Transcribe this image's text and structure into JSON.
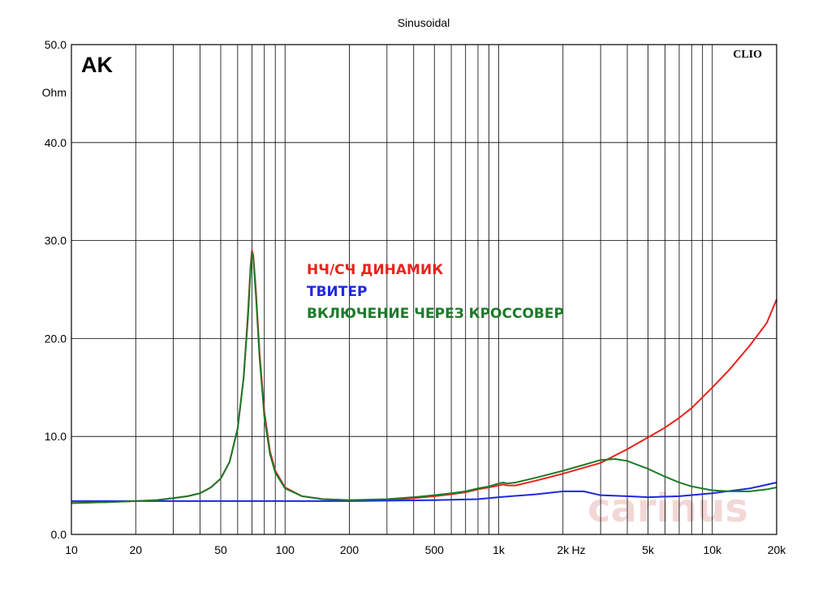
{
  "chart_data": {
    "type": "line",
    "title": "Sinusoidal",
    "corner_label": "AK",
    "brand": "CLIO",
    "watermark": "carinus",
    "ylabel": "Ohm",
    "xlabel": "Hz",
    "xscale": "log",
    "xlim": [
      10,
      20000
    ],
    "ylim": [
      0,
      50
    ],
    "grid": true,
    "x_ticks": [
      10,
      20,
      50,
      100,
      200,
      500,
      1000,
      2000,
      5000,
      10000,
      20000
    ],
    "x_tick_labels": [
      "10",
      "20",
      "50",
      "100",
      "200",
      "500",
      "1k",
      "2k",
      "5k",
      "10k",
      "20k"
    ],
    "y_ticks": [
      0,
      10,
      20,
      30,
      40,
      50
    ],
    "y_tick_labels": [
      "0.0",
      "10.0",
      "20.0",
      "30.0",
      "40.0",
      "50.0"
    ],
    "legend_position": "center",
    "series": [
      {
        "name": "НЧ/СЧ ДИНАМИК",
        "color": "#e8231d",
        "points": [
          [
            10,
            3.2
          ],
          [
            15,
            3.3
          ],
          [
            20,
            3.4
          ],
          [
            25,
            3.5
          ],
          [
            30,
            3.7
          ],
          [
            35,
            3.9
          ],
          [
            40,
            4.2
          ],
          [
            45,
            4.8
          ],
          [
            50,
            5.7
          ],
          [
            55,
            7.4
          ],
          [
            60,
            10.8
          ],
          [
            64,
            16.0
          ],
          [
            67,
            22.5
          ],
          [
            69,
            27.5
          ],
          [
            70,
            29.0
          ],
          [
            71,
            28.5
          ],
          [
            73,
            25.0
          ],
          [
            76,
            18.5
          ],
          [
            80,
            12.5
          ],
          [
            85,
            8.5
          ],
          [
            90,
            6.5
          ],
          [
            100,
            4.8
          ],
          [
            120,
            3.9
          ],
          [
            150,
            3.6
          ],
          [
            200,
            3.5
          ],
          [
            300,
            3.5
          ],
          [
            400,
            3.7
          ],
          [
            500,
            3.9
          ],
          [
            600,
            4.1
          ],
          [
            700,
            4.3
          ],
          [
            800,
            4.6
          ],
          [
            900,
            4.8
          ],
          [
            1000,
            5.0
          ],
          [
            1050,
            5.1
          ],
          [
            1100,
            5.0
          ],
          [
            1200,
            5.0
          ],
          [
            1500,
            5.5
          ],
          [
            2000,
            6.2
          ],
          [
            3000,
            7.3
          ],
          [
            4000,
            8.7
          ],
          [
            5000,
            9.9
          ],
          [
            6000,
            10.9
          ],
          [
            7000,
            11.9
          ],
          [
            8000,
            12.9
          ],
          [
            10000,
            15.0
          ],
          [
            12000,
            16.8
          ],
          [
            15000,
            19.3
          ],
          [
            18000,
            21.6
          ],
          [
            20000,
            24.0
          ]
        ]
      },
      {
        "name": "ТВИТЕР",
        "color": "#1f27e0",
        "points": [
          [
            10,
            3.4
          ],
          [
            20,
            3.4
          ],
          [
            50,
            3.4
          ],
          [
            100,
            3.4
          ],
          [
            200,
            3.4
          ],
          [
            500,
            3.5
          ],
          [
            800,
            3.6
          ],
          [
            1000,
            3.8
          ],
          [
            1500,
            4.1
          ],
          [
            2000,
            4.4
          ],
          [
            2500,
            4.4
          ],
          [
            3000,
            4.0
          ],
          [
            4000,
            3.9
          ],
          [
            5000,
            3.8
          ],
          [
            7000,
            3.9
          ],
          [
            10000,
            4.2
          ],
          [
            15000,
            4.7
          ],
          [
            20000,
            5.3
          ]
        ]
      },
      {
        "name": "ВКЛЮЧЕНИЕ ЧЕРЕЗ КРОССОВЕР",
        "color": "#1d7a2a",
        "points": [
          [
            10,
            3.2
          ],
          [
            15,
            3.3
          ],
          [
            20,
            3.4
          ],
          [
            25,
            3.5
          ],
          [
            30,
            3.7
          ],
          [
            35,
            3.9
          ],
          [
            40,
            4.2
          ],
          [
            45,
            4.8
          ],
          [
            50,
            5.7
          ],
          [
            55,
            7.4
          ],
          [
            60,
            10.8
          ],
          [
            64,
            16.0
          ],
          [
            67,
            22.0
          ],
          [
            69,
            27.0
          ],
          [
            70,
            28.8
          ],
          [
            71,
            28.2
          ],
          [
            73,
            24.5
          ],
          [
            76,
            18.0
          ],
          [
            80,
            12.0
          ],
          [
            85,
            8.2
          ],
          [
            90,
            6.3
          ],
          [
            100,
            4.7
          ],
          [
            120,
            3.9
          ],
          [
            150,
            3.6
          ],
          [
            200,
            3.5
          ],
          [
            300,
            3.6
          ],
          [
            400,
            3.8
          ],
          [
            500,
            4.0
          ],
          [
            600,
            4.2
          ],
          [
            700,
            4.4
          ],
          [
            800,
            4.7
          ],
          [
            900,
            4.9
          ],
          [
            1000,
            5.2
          ],
          [
            1050,
            5.3
          ],
          [
            1100,
            5.2
          ],
          [
            1200,
            5.3
          ],
          [
            1500,
            5.8
          ],
          [
            2000,
            6.5
          ],
          [
            2500,
            7.1
          ],
          [
            3000,
            7.6
          ],
          [
            3500,
            7.7
          ],
          [
            4000,
            7.5
          ],
          [
            5000,
            6.7
          ],
          [
            6000,
            5.9
          ],
          [
            7000,
            5.3
          ],
          [
            8000,
            4.9
          ],
          [
            10000,
            4.5
          ],
          [
            12000,
            4.4
          ],
          [
            15000,
            4.4
          ],
          [
            18000,
            4.6
          ],
          [
            20000,
            4.8
          ]
        ]
      }
    ]
  }
}
